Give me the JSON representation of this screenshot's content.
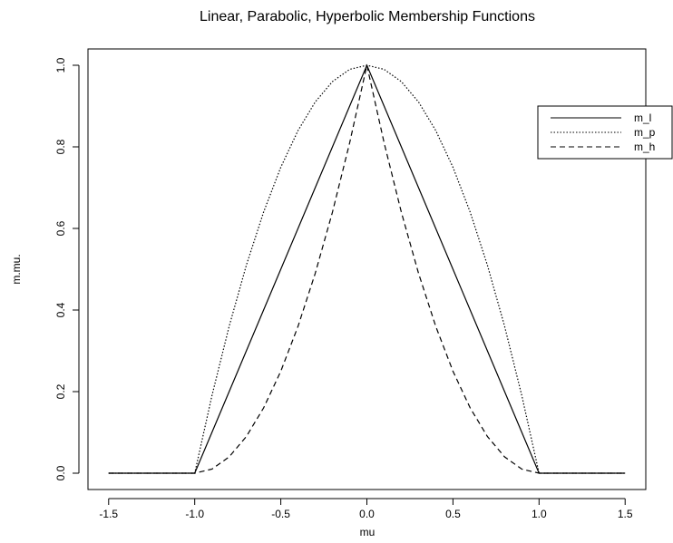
{
  "chart_data": {
    "type": "line",
    "title": "Linear, Parabolic, Hyperbolic Membership Functions",
    "x_label": "mu",
    "y_label": "m.mu.",
    "x": [
      -1.5,
      -1.4,
      -1.3,
      -1.2,
      -1.1,
      -1.0,
      -0.9,
      -0.8,
      -0.7,
      -0.6,
      -0.5,
      -0.4,
      -0.3,
      -0.2,
      -0.1,
      0,
      0.1,
      0.2,
      0.3,
      0.4,
      0.5,
      0.6,
      0.7,
      0.8,
      0.9,
      1.0,
      1.1,
      1.2,
      1.3,
      1.4,
      1.5
    ],
    "series": [
      {
        "name": "m_l",
        "color": "#000000",
        "linestyle": "solid",
        "values": [
          0,
          0,
          0,
          0,
          0,
          0,
          0.1,
          0.2,
          0.3,
          0.4,
          0.5,
          0.6,
          0.7,
          0.8,
          0.9,
          1,
          0.9,
          0.8,
          0.7,
          0.6,
          0.5,
          0.4,
          0.3,
          0.2,
          0.1,
          0,
          0,
          0,
          0,
          0,
          0
        ]
      },
      {
        "name": "m_p",
        "color": "#000000",
        "linestyle": "dotted",
        "values": [
          0,
          0,
          0,
          0,
          0,
          0,
          0.19,
          0.36,
          0.51,
          0.64,
          0.75,
          0.84,
          0.91,
          0.96,
          0.99,
          1,
          0.99,
          0.96,
          0.91,
          0.84,
          0.75,
          0.64,
          0.51,
          0.36,
          0.19,
          0,
          0,
          0,
          0,
          0,
          0
        ]
      },
      {
        "name": "m_h",
        "color": "#000000",
        "linestyle": "dashed",
        "values": [
          0,
          0,
          0,
          0,
          0,
          0,
          0.01,
          0.04,
          0.09,
          0.16,
          0.25,
          0.36,
          0.49,
          0.64,
          0.81,
          1,
          0.81,
          0.64,
          0.49,
          0.36,
          0.25,
          0.16,
          0.09,
          0.04,
          0.01,
          0,
          0,
          0,
          0,
          0,
          0
        ]
      }
    ],
    "xlim": [
      -1.62,
      1.62
    ],
    "ylim": [
      -0.04,
      1.04
    ],
    "xticks": [
      {
        "value": -1.5,
        "label": "-1.5"
      },
      {
        "value": -1,
        "label": "-1.0"
      },
      {
        "value": -0.5,
        "label": "-0.5"
      },
      {
        "value": 0,
        "label": "0.0"
      },
      {
        "value": 0.5,
        "label": "0.5"
      },
      {
        "value": 1,
        "label": "1.0"
      },
      {
        "value": 1.5,
        "label": "1.5"
      }
    ],
    "yticks": [
      {
        "value": 0,
        "label": "0.0"
      },
      0.2,
      0.4,
      0.6,
      0.8,
      {
        "value": 1,
        "label": "1.0"
      }
    ],
    "grid": false,
    "legend": "topright"
  }
}
